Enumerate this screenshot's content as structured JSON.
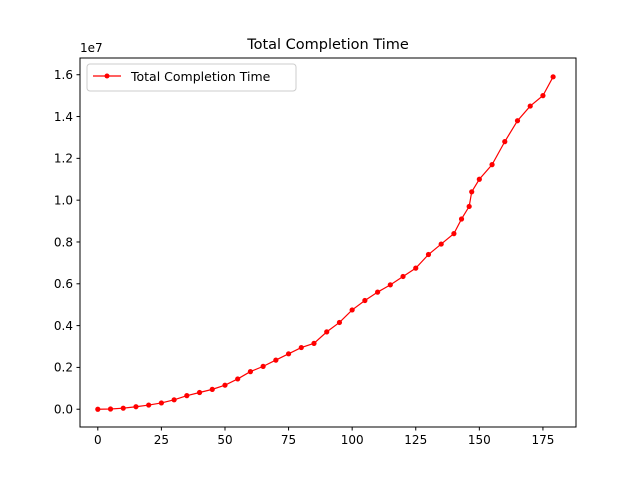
{
  "chart_data": {
    "type": "line",
    "title": "Total Completion Time",
    "xlabel": "",
    "ylabel": "",
    "y_offset_label": "1e7",
    "xlim": [
      -7,
      188
    ],
    "ylim": [
      -850000,
      16800000
    ],
    "x_ticks": [
      0,
      25,
      50,
      75,
      100,
      125,
      150,
      175
    ],
    "x_tick_labels": [
      "0",
      "25",
      "50",
      "75",
      "100",
      "125",
      "150",
      "175"
    ],
    "y_ticks": [
      0,
      2000000,
      4000000,
      6000000,
      8000000,
      10000000,
      12000000,
      14000000,
      16000000
    ],
    "y_tick_labels": [
      "0.0",
      "0.2",
      "0.4",
      "0.6",
      "0.8",
      "1.0",
      "1.2",
      "1.4",
      "1.6"
    ],
    "grid": false,
    "legend_position": "top-left",
    "series": [
      {
        "name": "Total Completion Time",
        "color": "#ff0000",
        "marker": "circle",
        "x": [
          0,
          5,
          10,
          15,
          20,
          25,
          30,
          35,
          40,
          45,
          50,
          55,
          60,
          65,
          70,
          75,
          80,
          85,
          90,
          95,
          100,
          105,
          110,
          115,
          120,
          125,
          130,
          135,
          140,
          143,
          146,
          147,
          150,
          155,
          160,
          165,
          170,
          175,
          179
        ],
        "values": [
          0,
          10000,
          50000,
          120000,
          200000,
          300000,
          450000,
          650000,
          800000,
          950000,
          1150000,
          1450000,
          1800000,
          2050000,
          2350000,
          2650000,
          2950000,
          3150000,
          3700000,
          4150000,
          4750000,
          5200000,
          5600000,
          5950000,
          6350000,
          6750000,
          7400000,
          7900000,
          8400000,
          9100000,
          9700000,
          10400000,
          11000000,
          11700000,
          12800000,
          13800000,
          14500000,
          15000000,
          15900000
        ]
      }
    ]
  }
}
